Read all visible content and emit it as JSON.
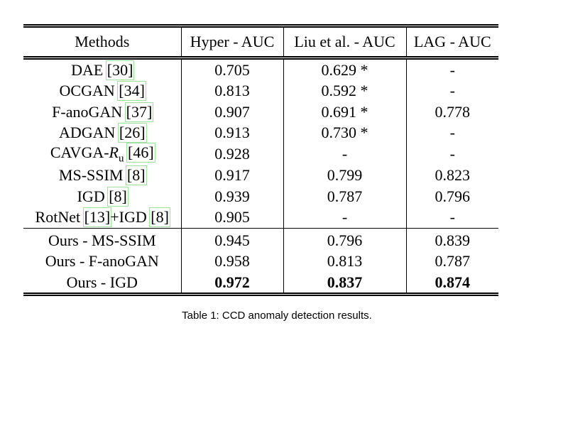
{
  "table": {
    "header": [
      "Methods",
      "Hyper - AUC",
      "Liu et al. - AUC",
      "LAG - AUC"
    ],
    "groups": [
      {
        "rows": [
          {
            "method": [
              {
                "text": "DAE "
              },
              {
                "text": "[30]",
                "style": "cite"
              }
            ],
            "cells": [
              "0.705",
              "0.629 *",
              "-"
            ]
          },
          {
            "method": [
              {
                "text": "OCGAN "
              },
              {
                "text": "[34]",
                "style": "cite"
              }
            ],
            "cells": [
              "0.813",
              "0.592 *",
              "-"
            ]
          },
          {
            "method": [
              {
                "text": "F-anoGAN "
              },
              {
                "text": "[37]",
                "style": "cite"
              }
            ],
            "cells": [
              "0.907",
              "0.691 *",
              "0.778"
            ]
          },
          {
            "method": [
              {
                "text": "ADGAN "
              },
              {
                "text": "[26]",
                "style": "cite"
              }
            ],
            "cells": [
              "0.913",
              "0.730 *",
              "-"
            ]
          },
          {
            "method": [
              {
                "text": "CAVGA-"
              },
              {
                "text": "R",
                "style": "italic"
              },
              {
                "text": "u",
                "style": "sub"
              },
              {
                "text": " "
              },
              {
                "text": "[46]",
                "style": "cite"
              }
            ],
            "cells": [
              "0.928",
              "-",
              "-"
            ]
          },
          {
            "method": [
              {
                "text": "MS-SSIM "
              },
              {
                "text": "[8]",
                "style": "cite"
              }
            ],
            "cells": [
              "0.917",
              "0.799",
              "0.823"
            ]
          },
          {
            "method": [
              {
                "text": "IGD "
              },
              {
                "text": "[8]",
                "style": "cite"
              }
            ],
            "cells": [
              "0.939",
              "0.787",
              "0.796"
            ]
          },
          {
            "method": [
              {
                "text": "RotNet "
              },
              {
                "text": "[13]",
                "style": "cite"
              },
              {
                "text": "+IGD "
              },
              {
                "text": "[8]",
                "style": "cite"
              }
            ],
            "cells": [
              "0.905",
              "-",
              "-"
            ]
          }
        ]
      },
      {
        "rows": [
          {
            "method": [
              {
                "text": "Ours - MS-SSIM"
              }
            ],
            "cells": [
              "0.945",
              "0.796",
              "0.839"
            ]
          },
          {
            "method": [
              {
                "text": "Ours - F-anoGAN"
              }
            ],
            "cells": [
              "0.958",
              "0.813",
              "0.787"
            ]
          },
          {
            "method": [
              {
                "text": "Ours - IGD"
              }
            ],
            "cells": [
              "0.972",
              "0.837",
              "0.874"
            ],
            "bold": true
          }
        ]
      }
    ],
    "caption": "Table 1: CCD anomaly detection results."
  }
}
